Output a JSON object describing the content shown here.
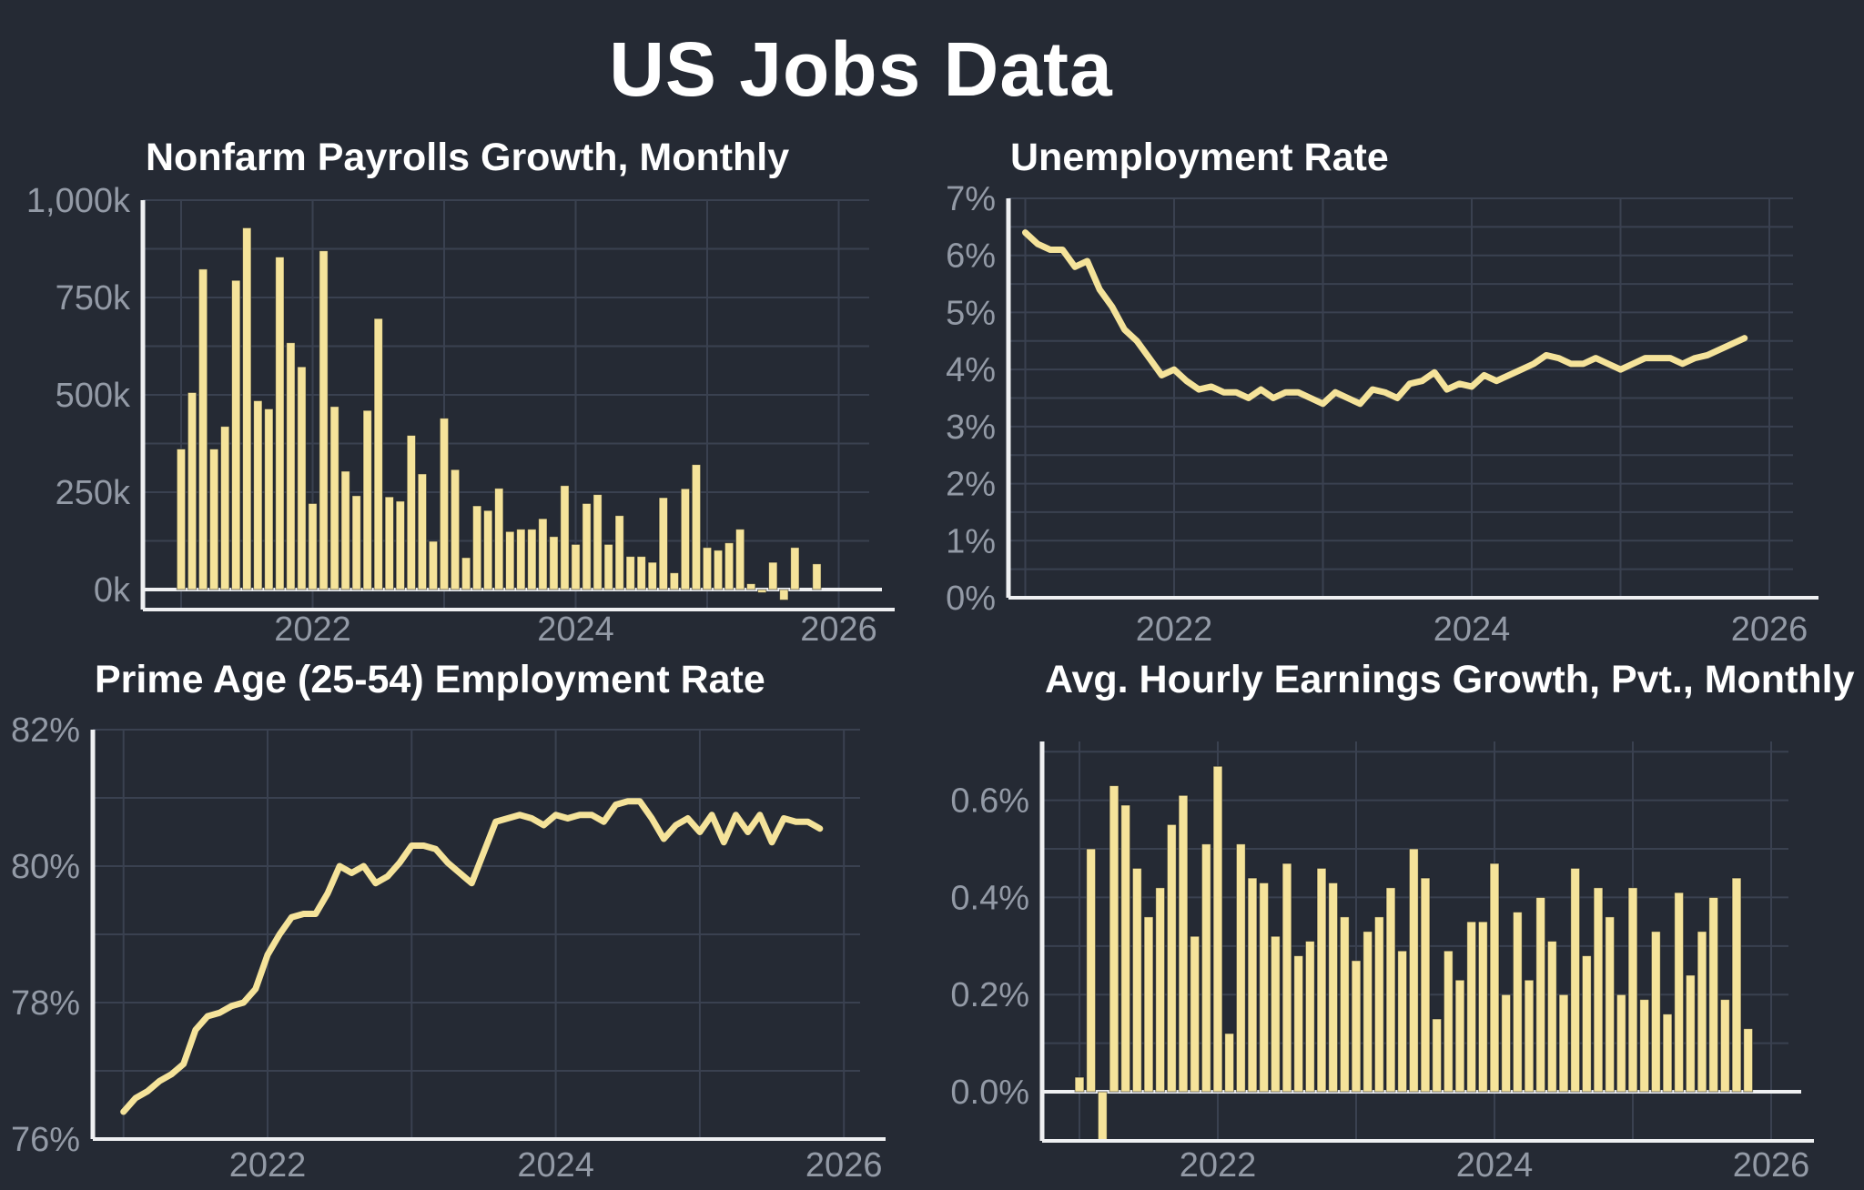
{
  "page": {
    "title": "US Jobs Data"
  },
  "colors": {
    "background": "#252A34",
    "series_yellow": "#F5E39A",
    "grid": "#3A4150",
    "tick_label": "#939AA6",
    "title_text": "#FFFFFF",
    "axis_line": "#EFF0F2"
  },
  "x_axis": {
    "frequency": "monthly",
    "start": "2021-01",
    "end": "2025-11",
    "grid_years": [
      2021,
      2022,
      2023,
      2024,
      2025,
      2026
    ],
    "labeled_years": [
      2022,
      2024,
      2026
    ],
    "tick_labels": [
      "2022",
      "2024",
      "2026"
    ]
  },
  "chart_data": [
    {
      "id": "nonfarm-payrolls",
      "type": "bar",
      "title": "Nonfarm Payrolls Growth, Monthly",
      "unit": "thousands of jobs, month-over-month",
      "ylim": [
        -51.4,
        1000
      ],
      "y_grid_step": 125,
      "zero_line": true,
      "y_ticks": [
        {
          "value": 0,
          "label": "0k"
        },
        {
          "value": 250,
          "label": "250k"
        },
        {
          "value": 500,
          "label": "500k"
        },
        {
          "value": 750,
          "label": "750k"
        },
        {
          "value": 1000,
          "label": "1,000k"
        }
      ],
      "values": [
        361,
        506,
        823,
        361,
        419,
        794,
        929,
        485,
        464,
        854,
        634,
        572,
        221,
        870,
        470,
        304,
        241,
        460,
        696,
        238,
        227,
        396,
        297,
        124,
        440,
        308,
        82,
        215,
        203,
        260,
        149,
        155,
        155,
        182,
        136,
        267,
        116,
        221,
        244,
        116,
        190,
        85,
        85,
        70,
        236,
        43,
        259,
        321,
        108,
        101,
        120,
        155,
        15,
        -8,
        70,
        -27,
        108,
        null,
        66
      ]
    },
    {
      "id": "unemployment-rate",
      "type": "line",
      "title": "Unemployment Rate",
      "unit": "percent",
      "ylim": [
        0,
        7
      ],
      "y_grid_step": 0.5,
      "zero_line": false,
      "y_ticks": [
        {
          "value": 0,
          "label": "0%"
        },
        {
          "value": 1,
          "label": "1%"
        },
        {
          "value": 2,
          "label": "2%"
        },
        {
          "value": 3,
          "label": "3%"
        },
        {
          "value": 4,
          "label": "4%"
        },
        {
          "value": 5,
          "label": "5%"
        },
        {
          "value": 6,
          "label": "6%"
        },
        {
          "value": 7,
          "label": "7%"
        }
      ],
      "values": [
        6.4,
        6.2,
        6.1,
        6.1,
        5.8,
        5.9,
        5.4,
        5.1,
        4.7,
        4.5,
        4.2,
        3.9,
        4.0,
        3.8,
        3.65,
        3.7,
        3.6,
        3.6,
        3.5,
        3.65,
        3.5,
        3.6,
        3.6,
        3.5,
        3.4,
        3.6,
        3.5,
        3.4,
        3.65,
        3.6,
        3.5,
        3.75,
        3.8,
        3.95,
        3.65,
        3.75,
        3.7,
        3.9,
        3.8,
        3.9,
        4.0,
        4.1,
        4.25,
        4.2,
        4.1,
        4.1,
        4.2,
        4.1,
        4.0,
        4.1,
        4.2,
        4.2,
        4.2,
        4.1,
        4.2,
        4.25,
        4.35,
        4.45,
        4.55
      ]
    },
    {
      "id": "prime-age-employment-rate",
      "type": "line",
      "title": "Prime Age (25-54) Employment Rate",
      "unit": "percent",
      "ylim": [
        76,
        82
      ],
      "y_grid_step": 1,
      "zero_line": false,
      "y_ticks": [
        {
          "value": 76,
          "label": "76%"
        },
        {
          "value": 78,
          "label": "78%"
        },
        {
          "value": 80,
          "label": "80%"
        },
        {
          "value": 82,
          "label": "82%"
        }
      ],
      "values": [
        76.4,
        76.6,
        76.7,
        76.85,
        76.95,
        77.1,
        77.6,
        77.8,
        77.85,
        77.95,
        78.0,
        78.2,
        78.7,
        79.0,
        79.25,
        79.3,
        79.3,
        79.6,
        80.0,
        79.9,
        80.0,
        79.75,
        79.85,
        80.05,
        80.3,
        80.3,
        80.25,
        80.05,
        79.9,
        79.75,
        80.2,
        80.65,
        80.7,
        80.75,
        80.7,
        80.6,
        80.75,
        80.7,
        80.75,
        80.75,
        80.65,
        80.9,
        80.95,
        80.95,
        80.7,
        80.4,
        80.6,
        80.7,
        80.5,
        80.75,
        80.35,
        80.75,
        80.5,
        80.75,
        80.35,
        80.7,
        80.65,
        80.65,
        80.55
      ]
    },
    {
      "id": "avg-hourly-earnings-growth",
      "type": "bar",
      "title": "Avg. Hourly Earnings Growth, Pvt., Monthly",
      "unit": "percent, month-over-month",
      "ylim": [
        -0.101,
        0.721
      ],
      "y_grid_step": 0.1,
      "zero_line": true,
      "y_ticks": [
        {
          "value": 0,
          "label": "0.0%"
        },
        {
          "value": 0.2,
          "label": "0.2%"
        },
        {
          "value": 0.4,
          "label": "0.4%"
        },
        {
          "value": 0.6,
          "label": "0.6%"
        }
      ],
      "values": [
        0.03,
        0.5,
        -0.12,
        0.63,
        0.59,
        0.46,
        0.36,
        0.42,
        0.55,
        0.61,
        0.32,
        0.51,
        0.67,
        0.12,
        0.51,
        0.44,
        0.43,
        0.32,
        0.47,
        0.28,
        0.31,
        0.46,
        0.43,
        0.36,
        0.27,
        0.33,
        0.36,
        0.42,
        0.29,
        0.5,
        0.44,
        0.15,
        0.29,
        0.23,
        0.35,
        0.35,
        0.47,
        0.2,
        0.37,
        0.23,
        0.4,
        0.31,
        0.2,
        0.46,
        0.28,
        0.42,
        0.36,
        0.2,
        0.42,
        0.19,
        0.33,
        0.16,
        0.41,
        0.24,
        0.33,
        0.4,
        0.19,
        0.44,
        0.13
      ]
    }
  ]
}
